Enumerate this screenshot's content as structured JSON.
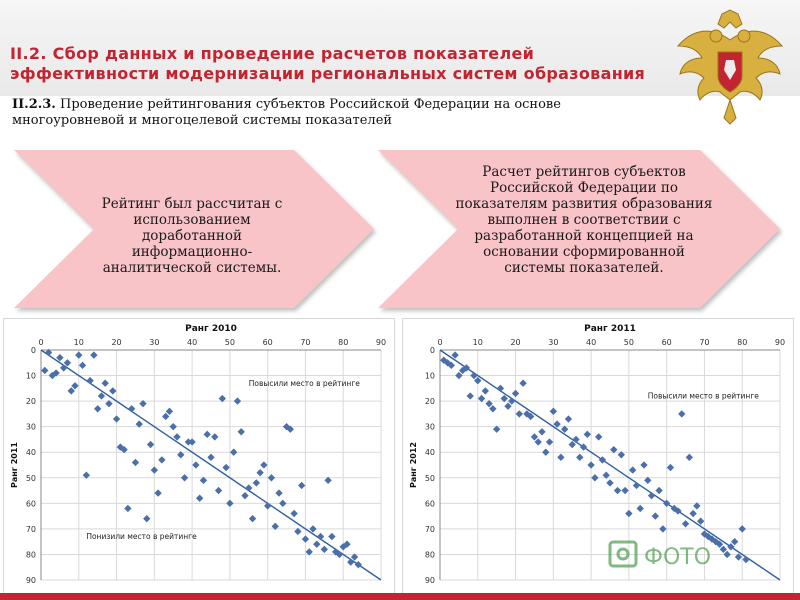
{
  "header": {
    "title": "II.2. Сбор данных и проведение расчетов показателей\nэффективности модернизации региональных систем образования",
    "subtitle_num": "II.2.3.",
    "subtitle_text": " Проведение рейтингования субъектов Российской Федерации на основе многоуровневой и многоцелевой системы показателей"
  },
  "chevrons": [
    {
      "text": "Рейтинг был рассчитан с использованием доработанной информационно-аналитической системы."
    },
    {
      "text": "Расчет рейтингов субъектов Российской Федерации по показателям развития образования выполнен в соответствии с разработанной концепцией на основании сформированной системы показателей."
    }
  ],
  "colors": {
    "title": "#c42431",
    "chevron_fill": "#f8c4c8",
    "point": "#4b6fa8",
    "trend": "#2e5fa5"
  },
  "logo": {
    "text": "ФОТО"
  },
  "chart_data": [
    {
      "type": "scatter",
      "title": "Ранг 2010",
      "xlabel": "",
      "ylabel": "Ранг 2011",
      "xlim": [
        0,
        90
      ],
      "ylim": [
        90,
        0
      ],
      "xticks": [
        0,
        10,
        20,
        30,
        40,
        50,
        60,
        70,
        80,
        90
      ],
      "yticks": [
        0,
        10,
        20,
        30,
        40,
        50,
        60,
        70,
        80,
        90
      ],
      "grid": true,
      "annotations": [
        {
          "text": "Повысили место в рейтинге",
          "x": 55,
          "y": 14
        },
        {
          "text": "Понизили место в рейтинге",
          "x": 12,
          "y": 74
        }
      ],
      "trendline": [
        [
          0,
          0
        ],
        [
          90,
          92
        ]
      ],
      "points": [
        [
          1,
          8
        ],
        [
          2,
          1
        ],
        [
          3,
          10
        ],
        [
          4,
          9
        ],
        [
          5,
          3
        ],
        [
          6,
          7
        ],
        [
          7,
          5
        ],
        [
          8,
          16
        ],
        [
          9,
          14
        ],
        [
          10,
          2
        ],
        [
          11,
          6
        ],
        [
          12,
          49
        ],
        [
          13,
          12
        ],
        [
          14,
          2
        ],
        [
          15,
          23
        ],
        [
          16,
          18
        ],
        [
          17,
          13
        ],
        [
          18,
          21
        ],
        [
          19,
          16
        ],
        [
          20,
          27
        ],
        [
          21,
          38
        ],
        [
          22,
          39
        ],
        [
          23,
          62
        ],
        [
          24,
          23
        ],
        [
          25,
          44
        ],
        [
          26,
          29
        ],
        [
          27,
          21
        ],
        [
          28,
          66
        ],
        [
          29,
          37
        ],
        [
          30,
          47
        ],
        [
          31,
          56
        ],
        [
          32,
          43
        ],
        [
          33,
          26
        ],
        [
          34,
          24
        ],
        [
          35,
          30
        ],
        [
          36,
          34
        ],
        [
          37,
          41
        ],
        [
          38,
          50
        ],
        [
          39,
          36
        ],
        [
          40,
          36
        ],
        [
          41,
          45
        ],
        [
          42,
          58
        ],
        [
          43,
          51
        ],
        [
          44,
          33
        ],
        [
          45,
          42
        ],
        [
          46,
          34
        ],
        [
          47,
          55
        ],
        [
          48,
          19
        ],
        [
          49,
          46
        ],
        [
          50,
          60
        ],
        [
          51,
          40
        ],
        [
          52,
          20
        ],
        [
          53,
          32
        ],
        [
          54,
          57
        ],
        [
          55,
          54
        ],
        [
          56,
          66
        ],
        [
          57,
          52
        ],
        [
          58,
          48
        ],
        [
          59,
          45
        ],
        [
          60,
          61
        ],
        [
          61,
          50
        ],
        [
          62,
          69
        ],
        [
          63,
          56
        ],
        [
          64,
          60
        ],
        [
          65,
          30
        ],
        [
          66,
          31
        ],
        [
          67,
          64
        ],
        [
          68,
          71
        ],
        [
          69,
          53
        ],
        [
          70,
          74
        ],
        [
          71,
          79
        ],
        [
          72,
          70
        ],
        [
          73,
          76
        ],
        [
          74,
          73
        ],
        [
          75,
          78
        ],
        [
          76,
          51
        ],
        [
          77,
          73
        ],
        [
          78,
          79
        ],
        [
          79,
          80
        ],
        [
          80,
          77
        ],
        [
          81,
          76
        ],
        [
          82,
          83
        ],
        [
          83,
          81
        ],
        [
          84,
          84
        ]
      ]
    },
    {
      "type": "scatter",
      "title": "Ранг 2011",
      "xlabel": "",
      "ylabel": "Ранг 2012",
      "xlim": [
        0,
        90
      ],
      "ylim": [
        90,
        0
      ],
      "xticks": [
        0,
        10,
        20,
        30,
        40,
        50,
        60,
        70,
        80,
        90
      ],
      "yticks": [
        0,
        10,
        20,
        30,
        40,
        50,
        60,
        70,
        80,
        90
      ],
      "grid": true,
      "annotations": [
        {
          "text": "Повысили место в рейтинге",
          "x": 55,
          "y": 19
        }
      ],
      "trendline": [
        [
          0,
          0
        ],
        [
          90,
          92
        ]
      ],
      "points": [
        [
          1,
          4
        ],
        [
          2,
          5
        ],
        [
          3,
          6
        ],
        [
          4,
          2
        ],
        [
          5,
          10
        ],
        [
          6,
          8
        ],
        [
          7,
          7
        ],
        [
          8,
          18
        ],
        [
          9,
          10
        ],
        [
          10,
          12
        ],
        [
          11,
          19
        ],
        [
          12,
          16
        ],
        [
          13,
          21
        ],
        [
          14,
          23
        ],
        [
          15,
          31
        ],
        [
          16,
          15
        ],
        [
          17,
          19
        ],
        [
          18,
          22
        ],
        [
          19,
          20
        ],
        [
          20,
          17
        ],
        [
          21,
          25
        ],
        [
          22,
          13
        ],
        [
          23,
          25
        ],
        [
          24,
          26
        ],
        [
          25,
          34
        ],
        [
          26,
          36
        ],
        [
          27,
          32
        ],
        [
          28,
          40
        ],
        [
          29,
          36
        ],
        [
          30,
          24
        ],
        [
          31,
          29
        ],
        [
          32,
          42
        ],
        [
          33,
          31
        ],
        [
          34,
          27
        ],
        [
          35,
          37
        ],
        [
          36,
          35
        ],
        [
          37,
          42
        ],
        [
          38,
          38
        ],
        [
          39,
          33
        ],
        [
          40,
          45
        ],
        [
          41,
          50
        ],
        [
          42,
          34
        ],
        [
          43,
          43
        ],
        [
          44,
          49
        ],
        [
          45,
          52
        ],
        [
          46,
          39
        ],
        [
          47,
          55
        ],
        [
          48,
          41
        ],
        [
          49,
          55
        ],
        [
          50,
          64
        ],
        [
          51,
          47
        ],
        [
          52,
          53
        ],
        [
          53,
          62
        ],
        [
          54,
          45
        ],
        [
          55,
          51
        ],
        [
          56,
          57
        ],
        [
          57,
          65
        ],
        [
          58,
          55
        ],
        [
          59,
          70
        ],
        [
          60,
          60
        ],
        [
          61,
          46
        ],
        [
          62,
          62
        ],
        [
          63,
          63
        ],
        [
          64,
          25
        ],
        [
          65,
          68
        ],
        [
          66,
          42
        ],
        [
          67,
          64
        ],
        [
          68,
          61
        ],
        [
          69,
          67
        ],
        [
          70,
          72
        ],
        [
          71,
          73
        ],
        [
          72,
          74
        ],
        [
          73,
          75
        ],
        [
          74,
          76
        ],
        [
          75,
          78
        ],
        [
          76,
          80
        ],
        [
          77,
          77
        ],
        [
          78,
          75
        ],
        [
          79,
          81
        ],
        [
          80,
          70
        ],
        [
          81,
          82
        ]
      ]
    }
  ]
}
